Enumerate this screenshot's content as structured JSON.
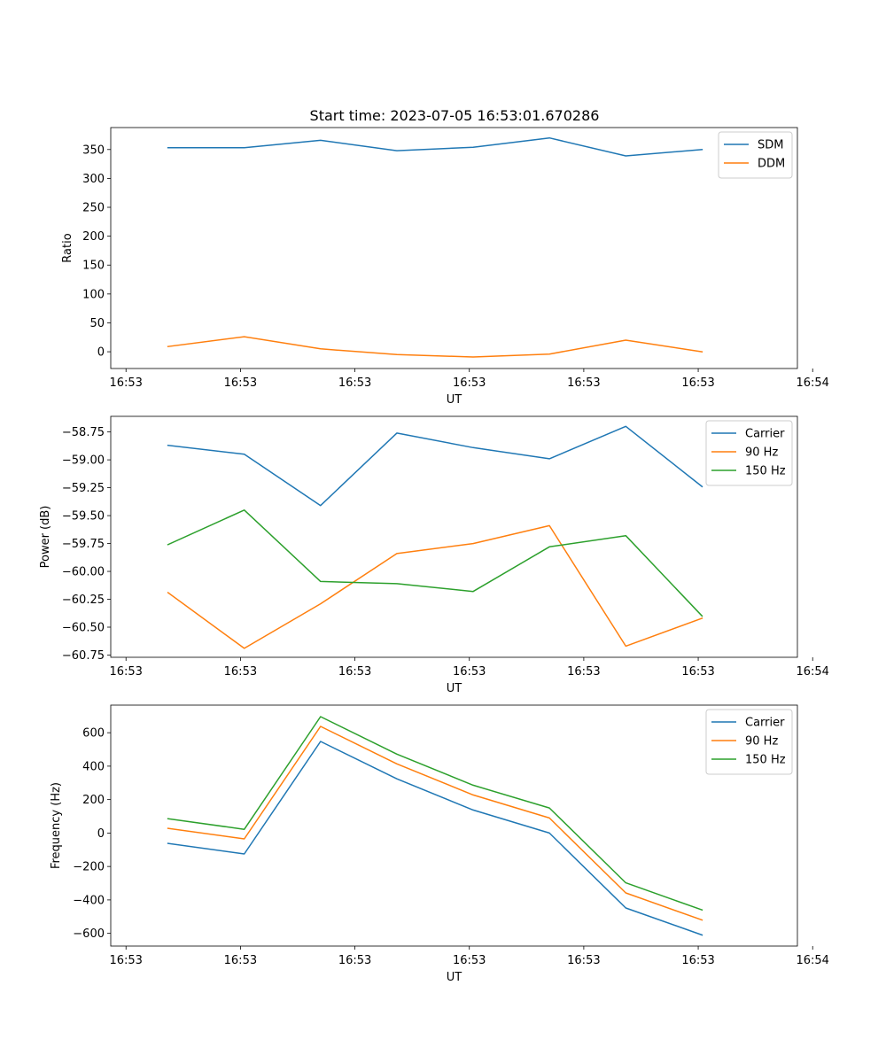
{
  "figure_title": "Start time: 2023-07-05 16:53:01.670286",
  "colors": {
    "c0": "#1f77b4",
    "c1": "#ff7f0e",
    "c2": "#2ca02c"
  },
  "chart_data": [
    {
      "type": "line",
      "title": "Start time: 2023-07-05 16:53:01.670286",
      "xlabel": "UT",
      "ylabel": "Ratio",
      "xlim": [
        0,
        9
      ],
      "ylim": [
        -29,
        388
      ],
      "x": [
        0.75,
        1.75,
        2.75,
        3.75,
        4.75,
        5.75,
        6.75,
        7.75
      ],
      "x_ticks": [
        0.2,
        1.7,
        3.2,
        4.7,
        6.2,
        7.7,
        9.2
      ],
      "x_tick_labels": [
        "16:53",
        "16:53",
        "16:53",
        "16:53",
        "16:53",
        "16:53",
        "16:54"
      ],
      "y_ticks": [
        0,
        50,
        100,
        150,
        200,
        250,
        300,
        350
      ],
      "y_tick_labels": [
        "0",
        "50",
        "100",
        "150",
        "200",
        "250",
        "300",
        "350"
      ],
      "legend_position": "top-right",
      "series": [
        {
          "name": "SDM",
          "color": "#1f77b4",
          "values": [
            353,
            353,
            366,
            348,
            354,
            370,
            339,
            350
          ]
        },
        {
          "name": "DDM",
          "color": "#ff7f0e",
          "values": [
            9,
            26,
            5,
            -5,
            -9,
            -4,
            20,
            0
          ]
        }
      ]
    },
    {
      "type": "line",
      "title": "",
      "xlabel": "UT",
      "ylabel": "Power (dB)",
      "xlim": [
        0,
        9
      ],
      "ylim": [
        -60.77,
        -58.61
      ],
      "x": [
        0.75,
        1.75,
        2.75,
        3.75,
        4.75,
        5.75,
        6.75,
        7.75
      ],
      "x_ticks": [
        0.2,
        1.7,
        3.2,
        4.7,
        6.2,
        7.7,
        9.2
      ],
      "x_tick_labels": [
        "16:53",
        "16:53",
        "16:53",
        "16:53",
        "16:53",
        "16:53",
        "16:54"
      ],
      "y_ticks": [
        -58.75,
        -59.0,
        -59.25,
        -59.5,
        -59.75,
        -60.0,
        -60.25,
        -60.5,
        -60.75
      ],
      "y_tick_labels": [
        "−58.75",
        "−59.00",
        "−59.25",
        "−59.50",
        "−59.75",
        "−60.00",
        "−60.25",
        "−60.50",
        "−60.75"
      ],
      "legend_position": "top-right",
      "series": [
        {
          "name": "Carrier",
          "color": "#1f77b4",
          "values": [
            -58.87,
            -58.95,
            -59.41,
            -58.76,
            -58.89,
            -58.99,
            -58.7,
            -59.24
          ]
        },
        {
          "name": "90 Hz",
          "color": "#ff7f0e",
          "values": [
            -60.19,
            -60.69,
            -60.29,
            -59.84,
            -59.75,
            -59.59,
            -60.67,
            -60.42
          ]
        },
        {
          "name": "150 Hz",
          "color": "#2ca02c",
          "values": [
            -59.76,
            -59.45,
            -60.09,
            -60.11,
            -60.18,
            -59.78,
            -59.68,
            -60.4
          ]
        }
      ]
    },
    {
      "type": "line",
      "title": "",
      "xlabel": "UT",
      "ylabel": "Frequency (Hz)",
      "xlim": [
        0,
        9
      ],
      "ylim": [
        -676,
        765
      ],
      "x": [
        0.75,
        1.75,
        2.75,
        3.75,
        4.75,
        5.75,
        6.75,
        7.75
      ],
      "x_ticks": [
        0.2,
        1.7,
        3.2,
        4.7,
        6.2,
        7.7,
        9.2
      ],
      "x_tick_labels": [
        "16:53",
        "16:53",
        "16:53",
        "16:53",
        "16:53",
        "16:53",
        "16:54"
      ],
      "y_ticks": [
        -600,
        -400,
        -200,
        0,
        200,
        400,
        600
      ],
      "y_tick_labels": [
        "−600",
        "−400",
        "−200",
        "0",
        "200",
        "400",
        "600"
      ],
      "legend_position": "top-right",
      "series": [
        {
          "name": "Carrier",
          "color": "#1f77b4",
          "values": [
            -62,
            -125,
            548,
            324,
            138,
            0,
            -448,
            -610
          ]
        },
        {
          "name": "90 Hz",
          "color": "#ff7f0e",
          "values": [
            28,
            -35,
            638,
            414,
            228,
            90,
            -358,
            -520
          ]
        },
        {
          "name": "150 Hz",
          "color": "#2ca02c",
          "values": [
            86,
            22,
            696,
            472,
            286,
            150,
            -298,
            -460
          ]
        }
      ]
    }
  ]
}
